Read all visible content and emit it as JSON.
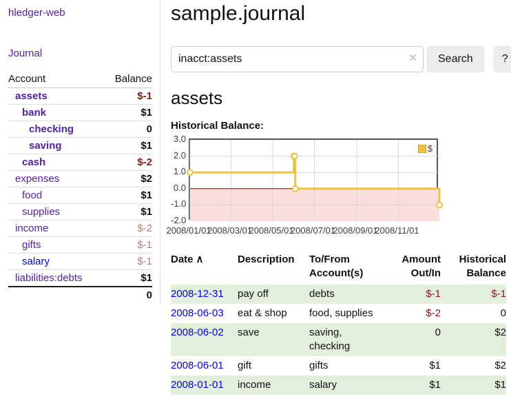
{
  "app": {
    "brand": "hledger-web",
    "nav_journal": "Journal"
  },
  "colors": {
    "purple_link": "#552299",
    "blue_link": "#0000ee",
    "negative": "#8c1717",
    "negative_soft": "#b97c7c",
    "row_stripe_green": "#e3efdd",
    "chart_line": "#edc240",
    "chart_negative_bg": "#fbdede",
    "chart_zero_line": "#800000"
  },
  "sidebar": {
    "account_header": "Account",
    "balance_header": "Balance",
    "accounts": [
      {
        "name": "assets",
        "balance": "$-1"
      },
      {
        "name": "bank",
        "balance": "$1"
      },
      {
        "name": "checking",
        "balance": "0"
      },
      {
        "name": "saving",
        "balance": "$1"
      },
      {
        "name": "cash",
        "balance": "$-2"
      },
      {
        "name": "expenses",
        "balance": "$2"
      },
      {
        "name": "food",
        "balance": "$1"
      },
      {
        "name": "supplies",
        "balance": "$1"
      },
      {
        "name": "income",
        "balance": "$-2"
      },
      {
        "name": "gifts",
        "balance": "$-1"
      },
      {
        "name": "salary",
        "balance": "$-1"
      },
      {
        "name": "liabilities:debts",
        "balance": "$1"
      }
    ],
    "total": "0"
  },
  "header": {
    "title": "sample.journal"
  },
  "search": {
    "value": "inacct:assets",
    "clear_icon": "✕",
    "button": "Search",
    "help_button": "?"
  },
  "account_page": {
    "title": "assets",
    "chart_label": "Historical Balance:"
  },
  "chart_data": {
    "type": "line",
    "title": "Historical Balance",
    "series": [
      {
        "name": "$",
        "color": "#edc240",
        "steps": true,
        "points": [
          [
            "2008-01-01",
            1
          ],
          [
            "2008-06-01",
            2
          ],
          [
            "2008-06-02",
            2
          ],
          [
            "2008-06-03",
            0
          ],
          [
            "2008-12-31",
            -1
          ]
        ]
      }
    ],
    "x_ticks": [
      "2008/01/01",
      "2008/03/01",
      "2008/05/01",
      "2008/07/01",
      "2008/09/01",
      "2008/11/01"
    ],
    "y_ticks": [
      "3.0",
      "2.0",
      "1.0",
      "0.0",
      "-1.0",
      "-2.0"
    ],
    "xlim": [
      "2008-01-01",
      "2008-12-31"
    ],
    "ylim": [
      -2,
      3
    ],
    "negative_region_color": "#fbdede",
    "zero_line_color": "#800000",
    "grid": true,
    "legend_position": "top-right"
  },
  "register": {
    "headers": [
      "Date",
      "Description",
      "To/From Account(s)",
      "Amount Out/In",
      "Historical Balance"
    ],
    "sort_icon": "∧",
    "rows": [
      {
        "date": "2008-12-31",
        "description": "pay off",
        "accounts": "debts",
        "amount": "$-1",
        "balance": "$-1"
      },
      {
        "date": "2008-06-03",
        "description": "eat & shop",
        "accounts": "food, supplies",
        "amount": "$-2",
        "balance": "0"
      },
      {
        "date": "2008-06-02",
        "description": "save",
        "accounts": "saving, checking",
        "amount": "0",
        "balance": "$2"
      },
      {
        "date": "2008-06-01",
        "description": "gift",
        "accounts": "gifts",
        "amount": "$1",
        "balance": "$2"
      },
      {
        "date": "2008-01-01",
        "description": "income",
        "accounts": "salary",
        "amount": "$1",
        "balance": "$1"
      }
    ]
  }
}
